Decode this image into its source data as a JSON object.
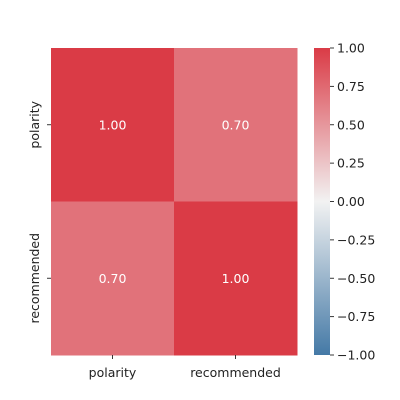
{
  "chart_data": {
    "type": "heatmap",
    "title": "",
    "xlabel": "",
    "ylabel": "",
    "x_categories": [
      "polarity",
      "recommended"
    ],
    "y_categories": [
      "polarity",
      "recommended"
    ],
    "values": [
      [
        1.0,
        0.7
      ],
      [
        0.7,
        1.0
      ]
    ],
    "cell_labels": [
      [
        "1.00",
        "0.70"
      ],
      [
        "0.70",
        "1.00"
      ]
    ],
    "colorbar": {
      "range": [
        -1.0,
        1.0
      ],
      "ticks": [
        1.0,
        0.75,
        0.5,
        0.25,
        0.0,
        -0.25,
        -0.5,
        -0.75,
        -1.0
      ],
      "tick_labels": [
        "1.00",
        "0.75",
        "0.50",
        "0.25",
        "0.00",
        "−0.25",
        "−0.50",
        "−0.75",
        "−1.00"
      ],
      "colors": {
        "low": "#4479a6",
        "mid": "#f2f2f2",
        "high": "#da3b46"
      }
    }
  }
}
